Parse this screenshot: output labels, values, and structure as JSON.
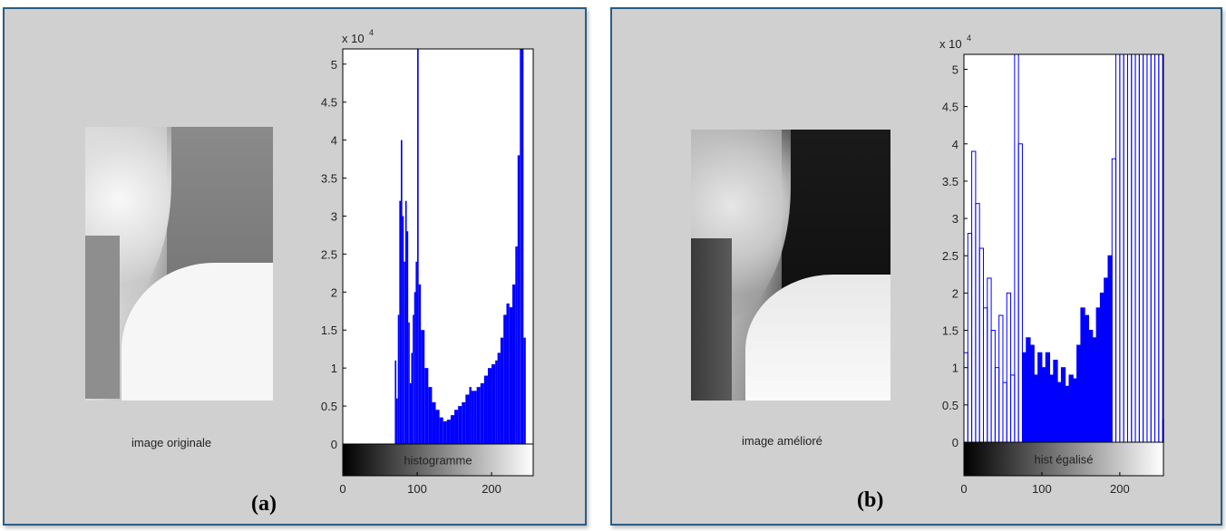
{
  "panel_a": {
    "caption": "image originale",
    "letter": "(a)"
  },
  "panel_b": {
    "caption": "image amélioré",
    "letter": "(b)"
  },
  "colors": {
    "bar": "#0000ff",
    "panel_bg": "#d0d0d0",
    "panel_border": "#2c5c82"
  },
  "chart_data": [
    {
      "type": "bar",
      "title": "",
      "colorbar_label": "histogramme",
      "y_exponent_label": "x 10",
      "y_exponent_power": "4",
      "xlabel": "",
      "ylabel": "",
      "xlim": [
        0,
        256
      ],
      "ylim": [
        0,
        52000
      ],
      "xticks": [
        0,
        100,
        200
      ],
      "yticks": [
        0,
        0.5,
        1,
        1.5,
        2,
        2.5,
        3,
        3.5,
        4,
        4.5,
        5
      ],
      "series": [
        {
          "x": [
            0,
            68,
            70,
            72,
            74,
            76,
            78,
            80,
            82,
            84,
            86,
            88,
            90,
            92,
            94,
            96,
            98,
            100,
            102,
            105,
            110,
            115,
            120,
            125,
            130,
            135,
            140,
            145,
            150,
            155,
            160,
            165,
            170,
            173,
            176,
            180,
            185,
            190,
            195,
            200,
            205,
            208,
            212,
            216,
            220,
            224,
            228,
            232,
            235,
            238,
            240,
            243,
            246,
            250,
            256
          ],
          "y": [
            0,
            0,
            11000,
            6000,
            17000,
            32000,
            40000,
            30000,
            24000,
            32000,
            28000,
            16000,
            8000,
            12000,
            17000,
            20000,
            24000,
            52000,
            21000,
            15000,
            10000,
            7500,
            5500,
            4500,
            3500,
            3000,
            3200,
            3800,
            4500,
            5000,
            5500,
            6500,
            7500,
            7000,
            7000,
            7500,
            8000,
            9000,
            10000,
            10500,
            11000,
            12000,
            14000,
            17000,
            18500,
            18000,
            21000,
            26000,
            38000,
            52000,
            52000,
            14000,
            0,
            0,
            0
          ]
        }
      ]
    },
    {
      "type": "bar",
      "title": "",
      "colorbar_label": "hist égalisé",
      "y_exponent_label": "x 10",
      "y_exponent_power": "4",
      "xlabel": "",
      "ylabel": "",
      "xlim": [
        0,
        256
      ],
      "ylim": [
        0,
        52000
      ],
      "xticks": [
        0,
        100,
        200
      ],
      "yticks": [
        0,
        0.5,
        1,
        1.5,
        2,
        2.5,
        3,
        3.5,
        4,
        4.5,
        5
      ],
      "series": [
        {
          "x": [
            0,
            5,
            10,
            15,
            20,
            25,
            30,
            35,
            40,
            45,
            50,
            55,
            60,
            65,
            70,
            75,
            80,
            85,
            90,
            95,
            100,
            105,
            110,
            115,
            120,
            125,
            130,
            135,
            140,
            145,
            150,
            155,
            160,
            165,
            170,
            175,
            180,
            185,
            190,
            195,
            200,
            205,
            210,
            215,
            220,
            225,
            230,
            235,
            240,
            245,
            250,
            255
          ],
          "y": [
            12000,
            28000,
            39000,
            32000,
            26000,
            18000,
            22000,
            15000,
            10000,
            17000,
            8000,
            20000,
            9000,
            52000,
            40000,
            12000,
            14000,
            13000,
            9000,
            12000,
            10000,
            12000,
            9000,
            11000,
            8000,
            10000,
            7500,
            9000,
            8500,
            13000,
            18000,
            17000,
            15000,
            14000,
            18000,
            20000,
            22000,
            25000,
            38000,
            52000,
            52000,
            52000,
            52000,
            52000,
            52000,
            52000,
            52000,
            52000,
            52000,
            52000,
            52000,
            3000
          ]
        }
      ]
    }
  ]
}
